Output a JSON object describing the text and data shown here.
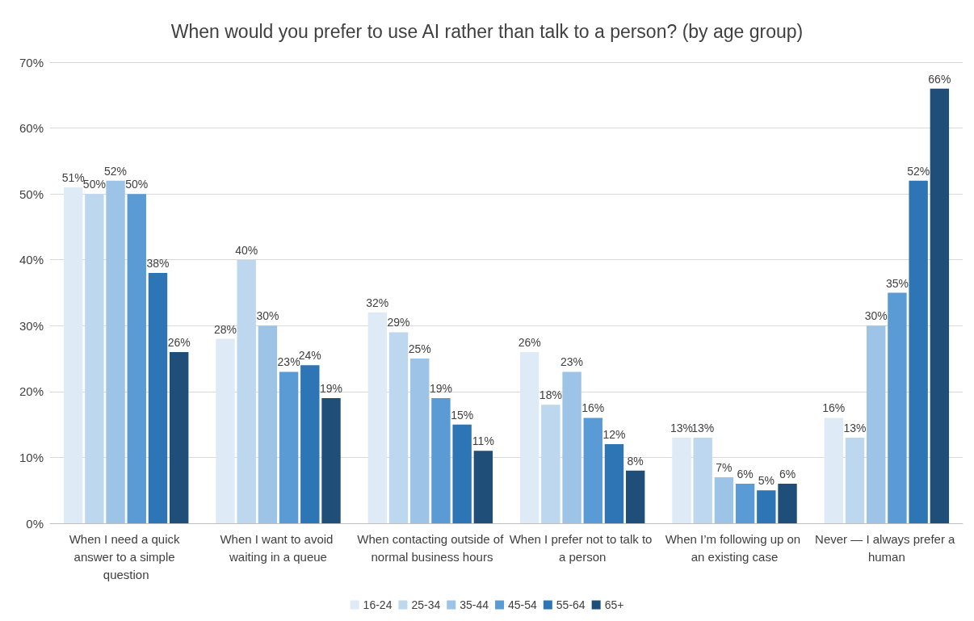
{
  "chart_data": {
    "type": "bar",
    "title": "When would you prefer to use AI rather than talk to a person? (by age group)",
    "categories": [
      "When I need a quick answer to a simple question",
      "When I want to avoid waiting in a queue",
      "When contacting outside of normal business hours",
      "When I prefer not to talk to a person",
      "When I’m following up on an existing case",
      "Never — I always prefer a human"
    ],
    "series": [
      {
        "name": "16-24",
        "color": "#deebf7",
        "values": [
          51,
          28,
          32,
          26,
          13,
          16
        ],
        "value_labels": [
          "51%",
          "28%",
          "32%",
          "26%",
          "13%",
          "16%"
        ]
      },
      {
        "name": "25-34",
        "color": "#bdd7ee",
        "values": [
          50,
          40,
          29,
          18,
          13,
          13
        ],
        "value_labels": [
          "50%",
          "40%",
          "29%",
          "18%",
          "13%",
          "13%"
        ]
      },
      {
        "name": "35-44",
        "color": "#9dc3e6",
        "values": [
          52,
          30,
          25,
          23,
          7,
          30
        ],
        "value_labels": [
          "52%",
          "30%",
          "25%",
          "23%",
          "7%",
          "30%"
        ]
      },
      {
        "name": "45-54",
        "color": "#5b9bd5",
        "values": [
          50,
          23,
          19,
          16,
          6,
          35
        ],
        "value_labels": [
          "50%",
          "23%",
          "19%",
          "16%",
          "6%",
          "35%"
        ]
      },
      {
        "name": "55-64",
        "color": "#2e75b6",
        "values": [
          38,
          24,
          15,
          12,
          5,
          52
        ],
        "value_labels": [
          "38%",
          "24%",
          "15%",
          "12%",
          "5%",
          "52%"
        ]
      },
      {
        "name": "65+",
        "color": "#1f4e79",
        "values": [
          26,
          19,
          11,
          8,
          6,
          66
        ],
        "value_labels": [
          "26%",
          "19%",
          "11%",
          "8%",
          "6%",
          "66%"
        ]
      }
    ],
    "ylim": [
      0,
      70
    ],
    "yticks": [
      {
        "value": 0,
        "label": "0%"
      },
      {
        "value": 10,
        "label": "10%"
      },
      {
        "value": 20,
        "label": "20%"
      },
      {
        "value": 30,
        "label": "30%"
      },
      {
        "value": 40,
        "label": "40%"
      },
      {
        "value": 50,
        "label": "50%"
      },
      {
        "value": 60,
        "label": "60%"
      },
      {
        "value": 70,
        "label": "70%"
      }
    ],
    "grid": "y",
    "legend": "bottom"
  }
}
